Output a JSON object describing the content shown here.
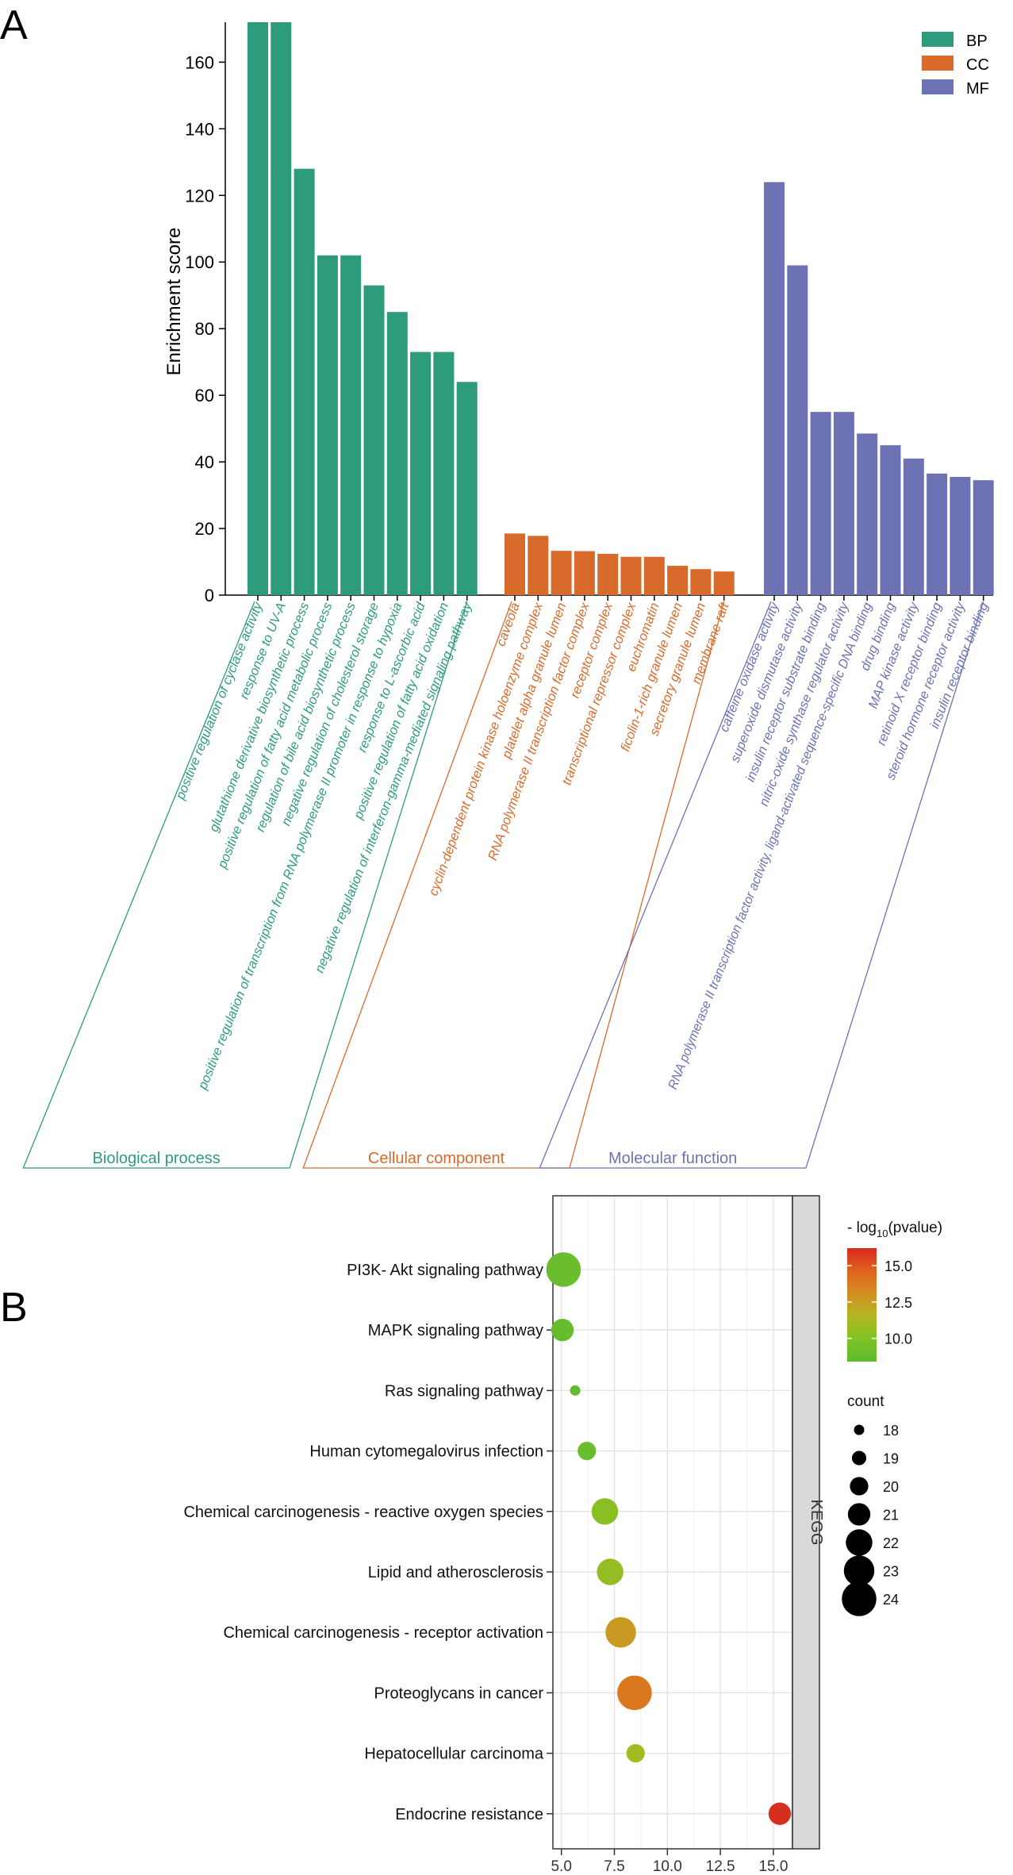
{
  "panels": {
    "a": "A",
    "b": "B"
  },
  "colors": {
    "BP": "#2e9b7c",
    "CC": "#d86a2c",
    "MF": "#6c72b4"
  },
  "chart_data": [
    {
      "type": "bar",
      "ylabel": "Enrichment score",
      "ylim": [
        0,
        172
      ],
      "yticks": [
        0,
        20,
        40,
        60,
        80,
        100,
        120,
        140,
        160
      ],
      "legend": [
        {
          "key": "BP",
          "label": "BP"
        },
        {
          "key": "CC",
          "label": "CC"
        },
        {
          "key": "MF",
          "label": "MF"
        }
      ],
      "legend_position": "top-right",
      "groups": [
        {
          "key": "BP",
          "group_label": "Biological process",
          "categories": [
            "positive regulation of cyclase activity",
            "response to UV-A",
            "glutathione derivative biosynthetic process",
            "positive regulation of fatty acid metabolic process",
            "regulation of bile acid biosynthetic process",
            "negative regulation of cholesterol storage",
            "positive regulation of transcription from RNA polymerase II promoter in response to hypoxia",
            "response to L-ascorbic acid",
            "positive regulation of fatty acid oxidation",
            "negative regulation of interferon-gamma-mediated signaling pathway"
          ],
          "values": [
            172,
            172,
            128,
            102,
            102,
            93,
            85,
            73,
            73,
            64
          ]
        },
        {
          "key": "CC",
          "group_label": "Cellular component",
          "categories": [
            "caveola",
            "cyclin-dependent protein kinase holoenzyme complex",
            "platelet alpha granule lumen",
            "RNA polymerase II transcription factor complex",
            "receptor complex",
            "transcriptional repressor complex",
            "euchromatin",
            "ficolin-1-rich granule lumen",
            "secretory granule lumen",
            "membrane raft"
          ],
          "values": [
            18.5,
            17.8,
            13.3,
            13.2,
            12.4,
            11.5,
            11.5,
            8.8,
            7.8,
            7.1
          ]
        },
        {
          "key": "MF",
          "group_label": "Molecular function",
          "categories": [
            "caffeine oxidase activity",
            "superoxide dismutase activity",
            "insulin receptor substrate binding",
            "nitric-oxide synthase regulator activity",
            "RNA polymerase II transcription factor activity, ligand-activated sequence-specific DNA binding",
            "drug binding",
            "MAP kinase activity",
            "retinoid X receptor binding",
            "steroid hormone receptor activity",
            "insulin receptor binding"
          ],
          "values": [
            124,
            99,
            55,
            55,
            48.5,
            45,
            41,
            36.5,
            35.5,
            34.5
          ]
        }
      ]
    },
    {
      "type": "scatter",
      "facet_label": "KEGG",
      "xlim": [
        4.6,
        15.9
      ],
      "xticks": [
        "5.0",
        "7.5",
        "10.0",
        "12.5",
        "15.0"
      ],
      "xtick_values": [
        5.0,
        7.5,
        10.0,
        12.5,
        15.0
      ],
      "color_title_prefix": "- log",
      "color_title_sub": "10",
      "color_title_suffix": "(pvalue)",
      "color_range": [
        8.4,
        16.2
      ],
      "color_ticks": [
        "10.0",
        "12.5",
        "15.0"
      ],
      "color_tick_values": [
        10.0,
        12.5,
        15.0
      ],
      "size_title": "count",
      "size_legend": [
        "18",
        "19",
        "20",
        "21",
        "22",
        "23",
        "24"
      ],
      "categories": [
        "PI3K- Akt signaling pathway",
        "MAPK signaling pathway",
        "Ras signaling pathway",
        "Human cytomegalovirus infection",
        "Chemical carcinogenesis -  reactive oxygen species",
        "Lipid and atherosclerosis",
        "Chemical carcinogenesis -  receptor activation",
        "Proteoglycans in cancer",
        "Hepatocellular carcinoma",
        "Endocrine resistance"
      ],
      "x": [
        5.1,
        5.05,
        5.65,
        6.2,
        7.05,
        7.3,
        7.8,
        8.45,
        8.5,
        15.3
      ],
      "color_value": [
        8.9,
        8.7,
        8.6,
        8.9,
        10.2,
        10.6,
        12.6,
        13.9,
        11.0,
        16.0
      ],
      "count": [
        24,
        21,
        18,
        20,
        22,
        22,
        23,
        24,
        20,
        21
      ]
    }
  ]
}
